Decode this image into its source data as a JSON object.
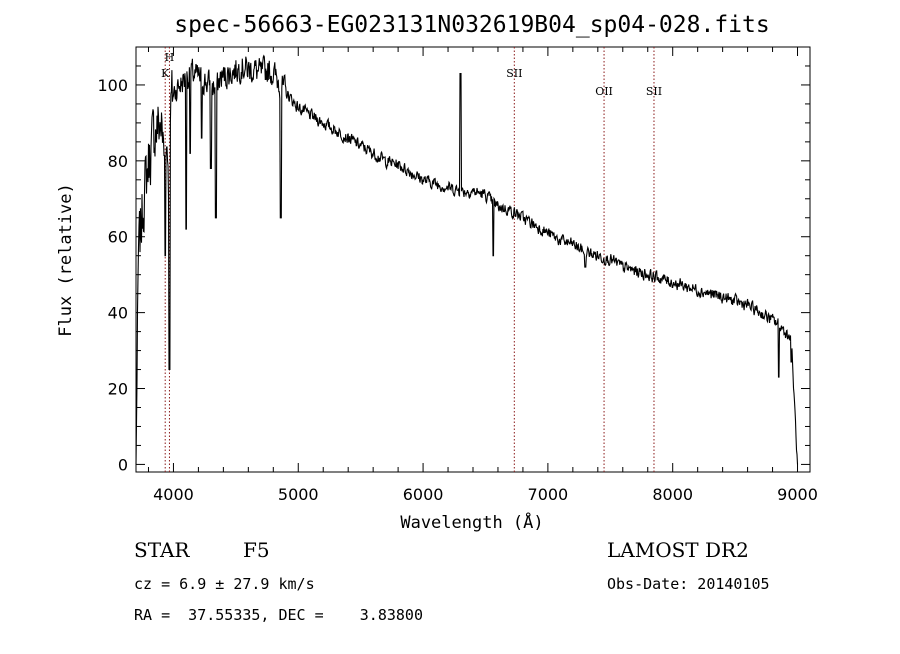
{
  "chart_data": {
    "type": "line",
    "title": "spec-56663-EG023131N032619B04_sp04-028.fits",
    "xlabel": "Wavelength (Å)",
    "ylabel": "Flux (relative)",
    "xlim": [
      3700,
      9100
    ],
    "ylim": [
      -2,
      110
    ],
    "xticks": [
      4000,
      5000,
      6000,
      7000,
      8000,
      9000
    ],
    "yticks": [
      0,
      20,
      40,
      60,
      80,
      100
    ],
    "series": [
      {
        "name": "spectrum",
        "anchors_x": [
          3700,
          3720,
          3760,
          3800,
          3850,
          3900,
          3930,
          3950,
          3968,
          3980,
          4000,
          4050,
          4101,
          4150,
          4200,
          4250,
          4300,
          4340,
          4380,
          4450,
          4500,
          4550,
          4600,
          4650,
          4700,
          4750,
          4800,
          4861,
          4900,
          5000,
          5100,
          5200,
          5300,
          5400,
          5500,
          5600,
          5700,
          5800,
          5900,
          6000,
          6100,
          6200,
          6300,
          6400,
          6500,
          6563,
          6600,
          6700,
          6800,
          6900,
          7000,
          7100,
          7200,
          7300,
          7400,
          7500,
          7600,
          7700,
          7800,
          7900,
          8000,
          8100,
          8200,
          8300,
          8400,
          8500,
          8600,
          8700,
          8800,
          8850,
          8900,
          8950,
          9000
        ],
        "anchors_y": [
          0,
          55,
          70,
          80,
          88,
          90,
          80,
          85,
          72,
          95,
          98,
          100,
          102,
          103,
          102,
          101,
          100,
          99,
          102,
          103,
          104,
          105,
          104,
          104,
          103,
          104,
          103,
          100,
          98,
          94,
          92,
          90,
          88,
          86,
          84,
          82,
          80,
          79,
          77,
          75,
          74,
          73,
          72,
          72,
          71,
          69,
          68,
          67,
          65,
          63,
          61,
          59,
          58,
          56,
          55,
          54,
          52,
          51,
          50,
          49,
          48,
          47,
          46,
          45,
          44,
          43,
          42,
          40,
          38,
          37,
          35,
          33,
          0
        ],
        "features": [
          {
            "x": 3934,
            "y": 55
          },
          {
            "x": 3968,
            "y": 25
          },
          {
            "x": 4101,
            "y": 62
          },
          {
            "x": 4135,
            "y": 82
          },
          {
            "x": 4227,
            "y": 86
          },
          {
            "x": 4300,
            "y": 78
          },
          {
            "x": 4340,
            "y": 65
          },
          {
            "x": 4860,
            "y": 65
          },
          {
            "x": 6300,
            "y": 103
          },
          {
            "x": 6563,
            "y": 55
          },
          {
            "x": 7300,
            "y": 52
          },
          {
            "x": 8850,
            "y": 23
          },
          {
            "x": 8950,
            "y": 27
          }
        ],
        "color": "#000000"
      }
    ],
    "line_markers": [
      {
        "x": 3934,
        "label": "K",
        "level": 2
      },
      {
        "x": 3968,
        "label": "H",
        "level": 1
      },
      {
        "x": 6731,
        "label": "SII",
        "level": 1
      },
      {
        "x": 7450,
        "label": "OII",
        "level": 2
      },
      {
        "x": 7850,
        "label": "SII",
        "level": 2
      }
    ],
    "marker_color": "#8b1a1a"
  },
  "info": {
    "object_class": "STAR",
    "subclass": "F5",
    "survey": "LAMOST DR2",
    "redshift_text": "cz = 6.9 ± 27.9 km/s",
    "obs_date_text": "Obs-Date: 20140105",
    "coords_text": "RA =  37.55335, DEC =    3.83800"
  }
}
